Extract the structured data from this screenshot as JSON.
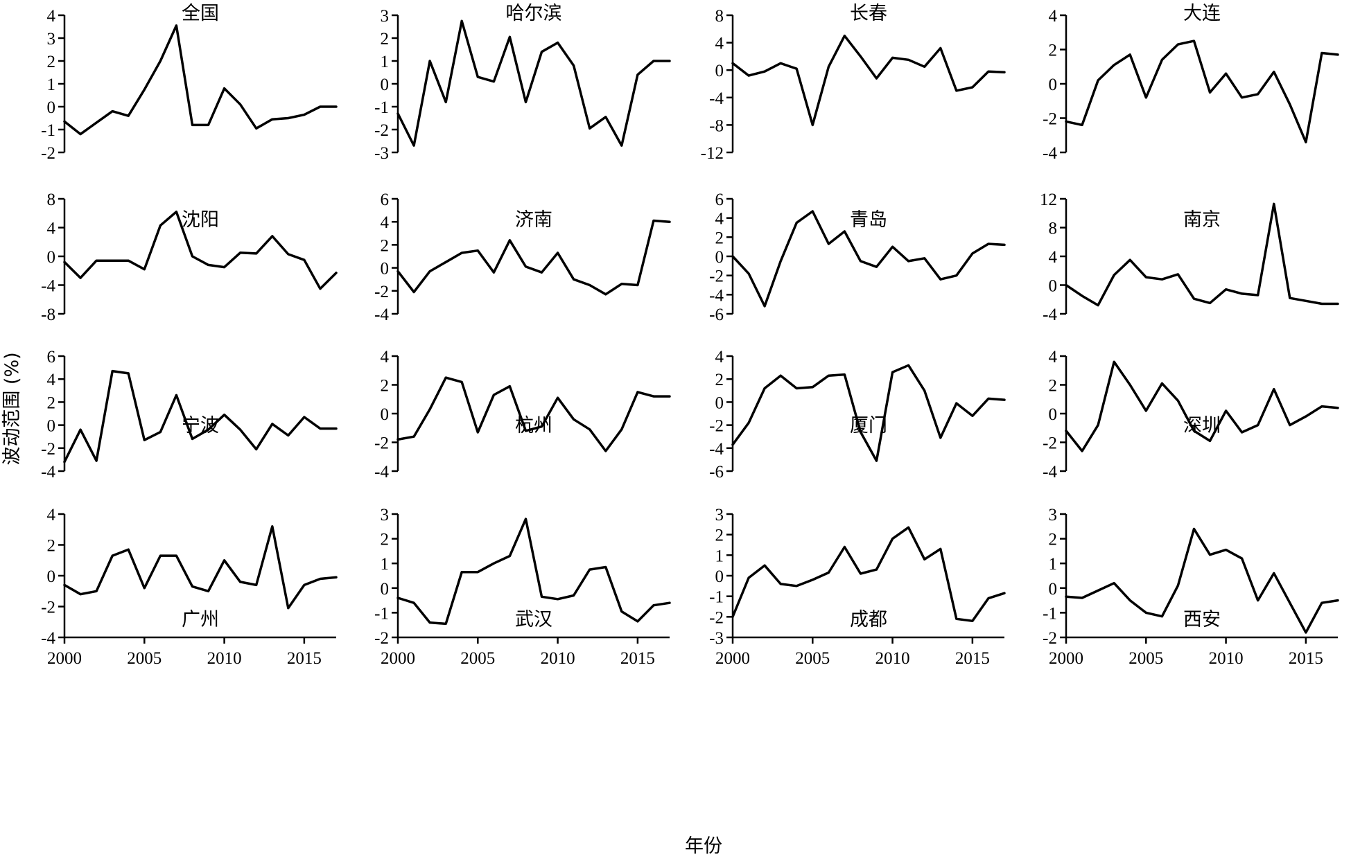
{
  "chart_data": {
    "type": "line",
    "layout": "small-multiples 4x4",
    "xlabel": "年份",
    "ylabel": "波动范围 (%)",
    "x": [
      2000,
      2001,
      2002,
      2003,
      2004,
      2005,
      2006,
      2007,
      2008,
      2009,
      2010,
      2011,
      2012,
      2013,
      2014,
      2015,
      2016,
      2017
    ],
    "xlim": [
      2000,
      2017
    ],
    "xticks": [
      2000,
      2005,
      2010,
      2015
    ],
    "xtick_labels": [
      "2000",
      "2005",
      "2010",
      "2015"
    ],
    "grid": false,
    "legend": "none",
    "panels": [
      {
        "title": "全国",
        "ylim": [
          -2,
          4
        ],
        "yticks": [
          -2,
          -1,
          0,
          1,
          2,
          3,
          4
        ],
        "values": [
          -0.65,
          -1.2,
          -0.7,
          -0.2,
          -0.4,
          0.75,
          2.0,
          3.55,
          -0.8,
          -0.8,
          0.8,
          0.1,
          -0.95,
          -0.55,
          -0.5,
          -0.35,
          0.0,
          0.0
        ]
      },
      {
        "title": "哈尔滨",
        "ylim": [
          -3,
          3
        ],
        "yticks": [
          -3,
          -2,
          -1,
          0,
          1,
          2,
          3
        ],
        "values": [
          -1.3,
          -2.7,
          1.0,
          -0.8,
          2.75,
          0.3,
          0.1,
          2.05,
          -0.8,
          1.4,
          1.8,
          0.8,
          -1.95,
          -1.45,
          -2.7,
          0.4,
          1.0,
          1.0
        ]
      },
      {
        "title": "长春",
        "ylim": [
          -12,
          8
        ],
        "yticks": [
          -12,
          -8,
          -4,
          0,
          4,
          8
        ],
        "values": [
          1.0,
          -0.8,
          -0.2,
          1.0,
          0.2,
          -8.0,
          0.5,
          5.0,
          2.0,
          -1.2,
          1.8,
          1.5,
          0.5,
          3.2,
          -3.0,
          -2.5,
          -0.2,
          -0.3
        ]
      },
      {
        "title": "大连",
        "ylim": [
          -4,
          4
        ],
        "yticks": [
          -4,
          -2,
          0,
          2,
          4
        ],
        "values": [
          -2.2,
          -2.4,
          0.2,
          1.1,
          1.7,
          -0.8,
          1.4,
          2.3,
          2.5,
          -0.5,
          0.6,
          -0.8,
          -0.6,
          0.7,
          -1.2,
          -3.4,
          1.8,
          1.7
        ]
      },
      {
        "title": "沈阳",
        "ylim": [
          -8,
          8
        ],
        "yticks": [
          -8,
          -4,
          0,
          4,
          8
        ],
        "values": [
          -0.8,
          -3.0,
          -0.6,
          -0.6,
          -0.6,
          -1.8,
          4.3,
          6.2,
          0.0,
          -1.2,
          -1.5,
          0.5,
          0.4,
          2.8,
          0.3,
          -0.5,
          -4.5,
          -2.3
        ]
      },
      {
        "title": "济南",
        "ylim": [
          -4,
          6
        ],
        "yticks": [
          -4,
          -2,
          0,
          2,
          4,
          6
        ],
        "values": [
          -0.3,
          -2.1,
          -0.3,
          0.5,
          1.3,
          1.5,
          -0.4,
          2.4,
          0.1,
          -0.4,
          1.3,
          -1.0,
          -1.5,
          -2.3,
          -1.4,
          -1.5,
          4.1,
          4.0
        ]
      },
      {
        "title": "青岛",
        "ylim": [
          -6,
          6
        ],
        "yticks": [
          -6,
          -4,
          -2,
          0,
          2,
          4,
          6
        ],
        "values": [
          0.0,
          -1.8,
          -5.2,
          -0.5,
          3.5,
          4.7,
          1.3,
          2.6,
          -0.5,
          -1.1,
          1.0,
          -0.5,
          -0.2,
          -2.4,
          -2.0,
          0.3,
          1.3,
          1.2
        ]
      },
      {
        "title": "南京",
        "ylim": [
          -4,
          12
        ],
        "yticks": [
          -4,
          0,
          4,
          8,
          12
        ],
        "values": [
          0.0,
          -1.5,
          -2.8,
          1.4,
          3.5,
          1.1,
          0.8,
          1.5,
          -1.9,
          -2.5,
          -0.6,
          -1.2,
          -1.4,
          11.3,
          -1.8,
          -2.2,
          -2.6,
          -2.6
        ]
      },
      {
        "title": "宁波",
        "ylim": [
          -4,
          6
        ],
        "yticks": [
          -4,
          -2,
          0,
          2,
          4,
          6
        ],
        "values": [
          -3.2,
          -0.4,
          -3.1,
          4.7,
          4.5,
          -1.3,
          -0.6,
          2.6,
          -1.2,
          -0.4,
          0.9,
          -0.4,
          -2.1,
          0.1,
          -0.9,
          0.7,
          -0.3,
          -0.3
        ]
      },
      {
        "title": "杭州",
        "ylim": [
          -4,
          4
        ],
        "yticks": [
          -4,
          -2,
          0,
          2,
          4
        ],
        "values": [
          -1.8,
          -1.6,
          0.3,
          2.5,
          2.2,
          -1.3,
          1.3,
          1.9,
          -1.2,
          -0.9,
          1.1,
          -0.4,
          -1.1,
          -2.6,
          -1.1,
          1.5,
          1.2,
          1.2
        ]
      },
      {
        "title": "厦门",
        "ylim": [
          -6,
          4
        ],
        "yticks": [
          -6,
          -4,
          -2,
          0,
          2,
          4
        ],
        "values": [
          -3.7,
          -1.8,
          1.2,
          2.3,
          1.2,
          1.3,
          2.3,
          2.4,
          -2.6,
          -5.1,
          2.6,
          3.2,
          1.0,
          -3.1,
          -0.1,
          -1.2,
          0.3,
          0.2
        ]
      },
      {
        "title": "深圳",
        "ylim": [
          -4,
          4
        ],
        "yticks": [
          -4,
          -2,
          0,
          2,
          4
        ],
        "values": [
          -1.2,
          -2.6,
          -0.8,
          3.6,
          2.0,
          0.2,
          2.1,
          0.9,
          -1.2,
          -1.9,
          0.2,
          -1.3,
          -0.8,
          1.7,
          -0.8,
          -0.2,
          0.5,
          0.4
        ]
      },
      {
        "title": "广州",
        "ylim": [
          -4,
          4
        ],
        "yticks": [
          -4,
          -2,
          0,
          2,
          4
        ],
        "values": [
          -0.6,
          -1.2,
          -1.0,
          1.3,
          1.7,
          -0.8,
          1.3,
          1.3,
          -0.7,
          -1.0,
          1.0,
          -0.4,
          -0.6,
          3.2,
          -2.1,
          -0.6,
          -0.2,
          -0.1
        ]
      },
      {
        "title": "武汉",
        "ylim": [
          -2,
          3
        ],
        "yticks": [
          -2,
          -1,
          0,
          1,
          2,
          3
        ],
        "values": [
          -0.4,
          -0.6,
          -1.4,
          -1.45,
          0.65,
          0.65,
          1.0,
          1.3,
          2.8,
          -0.35,
          -0.45,
          -0.3,
          0.75,
          0.85,
          -0.95,
          -1.35,
          -0.7,
          -0.6
        ]
      },
      {
        "title": "成都",
        "ylim": [
          -3,
          3
        ],
        "yticks": [
          -3,
          -2,
          -1,
          0,
          1,
          2,
          3
        ],
        "values": [
          -2.0,
          -0.1,
          0.5,
          -0.4,
          -0.5,
          -0.2,
          0.15,
          1.4,
          0.1,
          0.3,
          1.8,
          2.35,
          0.8,
          1.3,
          -2.1,
          -2.2,
          -1.1,
          -0.85
        ]
      },
      {
        "title": "西安",
        "ylim": [
          -2,
          3
        ],
        "yticks": [
          -2,
          -1,
          0,
          1,
          2,
          3
        ],
        "values": [
          -0.35,
          -0.4,
          -0.1,
          0.2,
          -0.5,
          -1.0,
          -1.15,
          0.1,
          2.4,
          1.35,
          1.55,
          1.2,
          -0.5,
          0.6,
          -0.6,
          -1.8,
          -0.6,
          -0.5
        ]
      }
    ]
  }
}
